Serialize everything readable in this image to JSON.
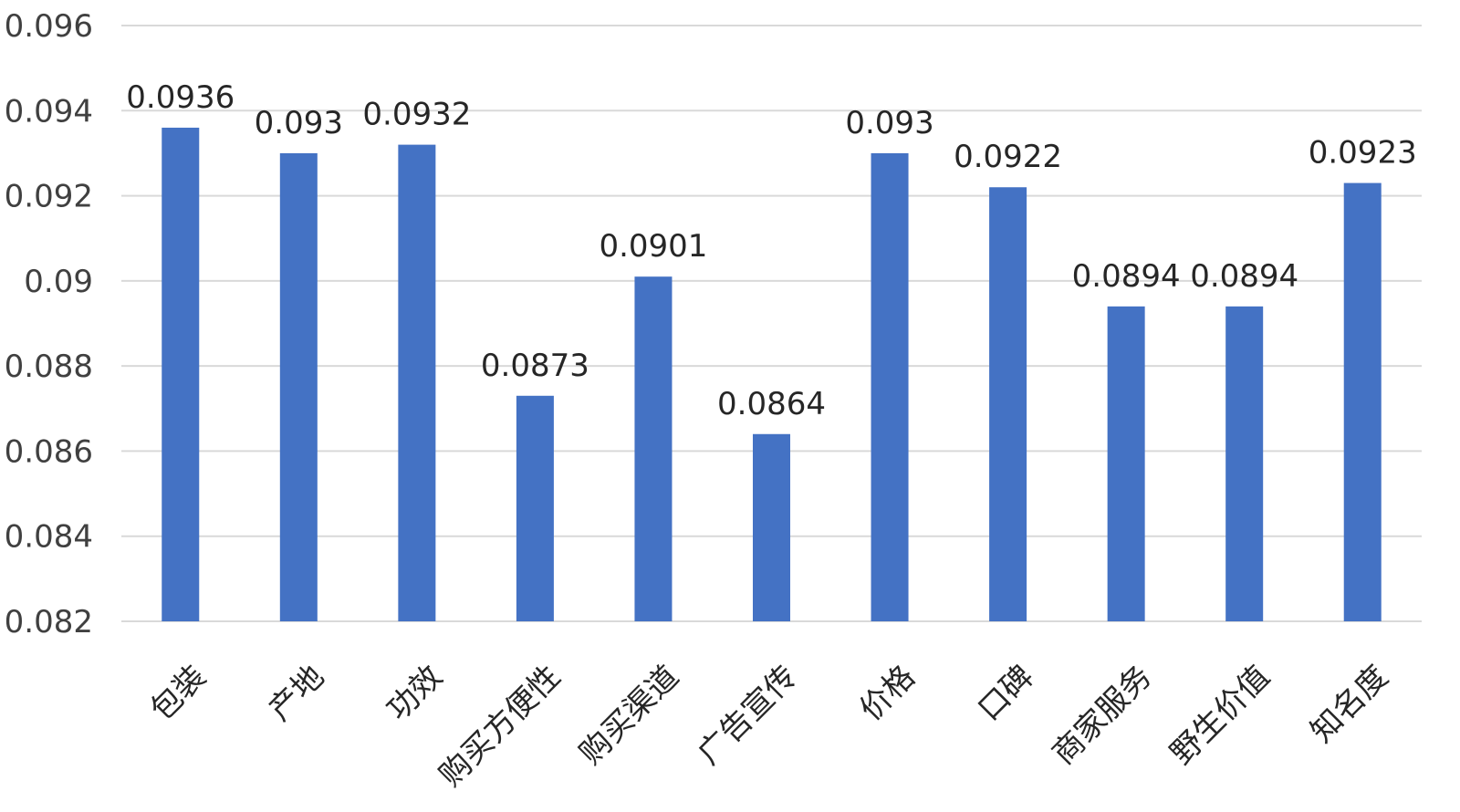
{
  "chart_data": {
    "type": "bar",
    "categories": [
      "包装",
      "产地",
      "功效",
      "购买方便性",
      "购买渠道",
      "广告宣传",
      "价格",
      "口碑",
      "商家服务",
      "野生价值",
      "知名度"
    ],
    "values": [
      0.0936,
      0.093,
      0.0932,
      0.0873,
      0.0901,
      0.0864,
      0.093,
      0.0922,
      0.0894,
      0.0894,
      0.0923
    ],
    "data_labels": [
      "0.0936",
      "0.093",
      "0.0932",
      "0.0873",
      "0.0901",
      "0.0864",
      "0.093",
      "0.0922",
      "0.0894",
      "0.0894",
      "0.0923"
    ],
    "yticks": [
      0.082,
      0.084,
      0.086,
      0.088,
      0.09,
      0.092,
      0.094,
      0.096
    ],
    "ytick_labels": [
      "0.082",
      "0.084",
      "0.086",
      "0.088",
      "0.09",
      "0.092",
      "0.094",
      "0.096"
    ],
    "ylim": [
      0.082,
      0.096
    ],
    "title": "",
    "xlabel": "",
    "ylabel": "",
    "grid": true,
    "legend": "none",
    "colors": {
      "bar": "#4472c4",
      "grid": "#d9d9d9"
    }
  }
}
